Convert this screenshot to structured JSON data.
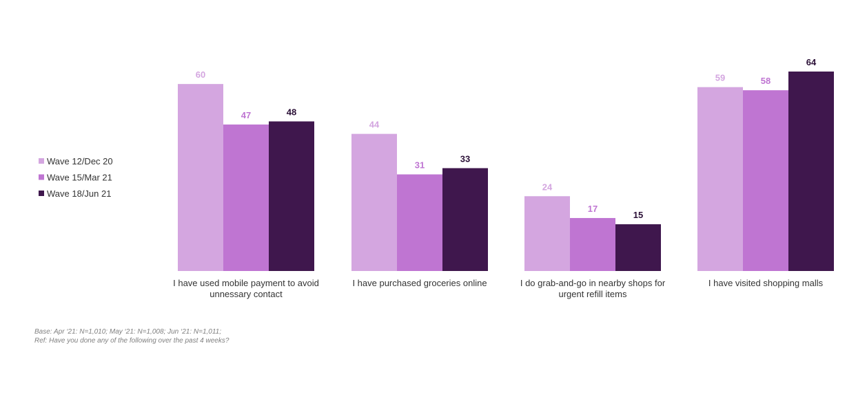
{
  "chart_data": {
    "type": "bar",
    "categories": [
      [
        "I have used mobile payment to avoid",
        "unnessary contact"
      ],
      [
        "I have purchased groceries online"
      ],
      [
        "I do grab-and-go in nearby shops for",
        "urgent refill items"
      ],
      [
        "I have visited shopping malls"
      ]
    ],
    "series": [
      {
        "name": "Wave 12/Dec 20",
        "color": "#d4a6e0",
        "label_color": "#d4a6e0",
        "values": [
          60,
          44,
          24,
          59
        ]
      },
      {
        "name": "Wave 15/Mar 21",
        "color": "#bf75d2",
        "label_color": "#bf75d2",
        "values": [
          47,
          31,
          17,
          58
        ]
      },
      {
        "name": "Wave 18/Jun 21",
        "color": "#3f174d",
        "label_color": "#2a0f36",
        "values": [
          48,
          33,
          15,
          64
        ]
      }
    ],
    "ylim": [
      0,
      64
    ],
    "legend_position": "left",
    "grid": false,
    "title": "",
    "xlabel": "",
    "ylabel": ""
  },
  "footnotes": {
    "base": "Base: Apr ‘21: N=1,010; May ‘21: N=1,008; Jun ‘21: N=1,011;",
    "ref": "Ref:  Have you done any of the following over the past 4 weeks?"
  }
}
